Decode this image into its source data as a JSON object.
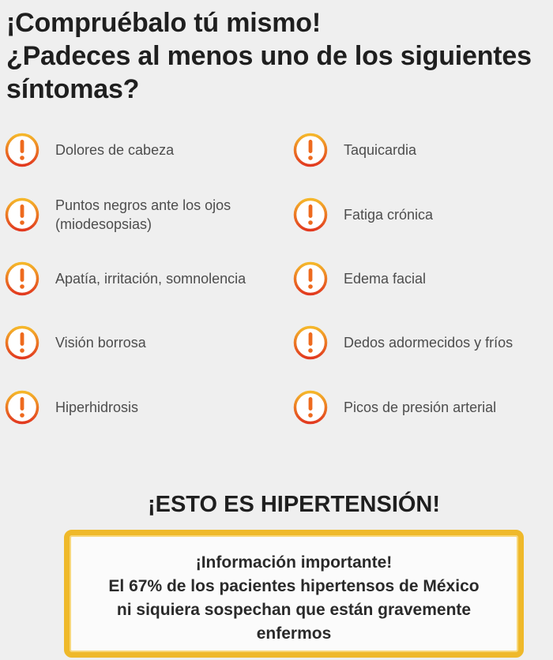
{
  "headline": {
    "line1": "¡Compruébalo tú mismo!",
    "line2": "¿Padeces al menos uno de los siguientes",
    "line3": "síntomas?"
  },
  "symptoms": {
    "icon": "exclamation-circle-icon",
    "colors": {
      "ring_top": "#f5b72a",
      "ring_bottom": "#e2391f",
      "mark": "#ee6a1e"
    },
    "left": [
      {
        "line1": "Dolores de cabeza",
        "line2": ""
      },
      {
        "line1": "Puntos negros ante los ojos",
        "line2": "(miodesopsias)"
      },
      {
        "line1": "Apatía, irritación, somnolencia",
        "line2": ""
      },
      {
        "line1": "Visión borrosa",
        "line2": ""
      },
      {
        "line1": "Hiperhidrosis",
        "line2": ""
      }
    ],
    "right": [
      {
        "line1": "Taquicardia",
        "line2": ""
      },
      {
        "line1": "Fatiga crónica",
        "line2": ""
      },
      {
        "line1": "Edema facial",
        "line2": ""
      },
      {
        "line1": "Dedos adormecidos y fríos",
        "line2": ""
      },
      {
        "line1": "Picos de presión arterial",
        "line2": ""
      }
    ]
  },
  "hypertension_title": "¡ESTO ES HIPERTENSIÓN!",
  "info_box": {
    "border_color": "#efb92a",
    "line1": "¡Información importante!",
    "line2": "El 67% de los pacientes hipertensos de México",
    "line3": "ni siquiera sospechan que están gravemente",
    "line4": "enfermos"
  }
}
